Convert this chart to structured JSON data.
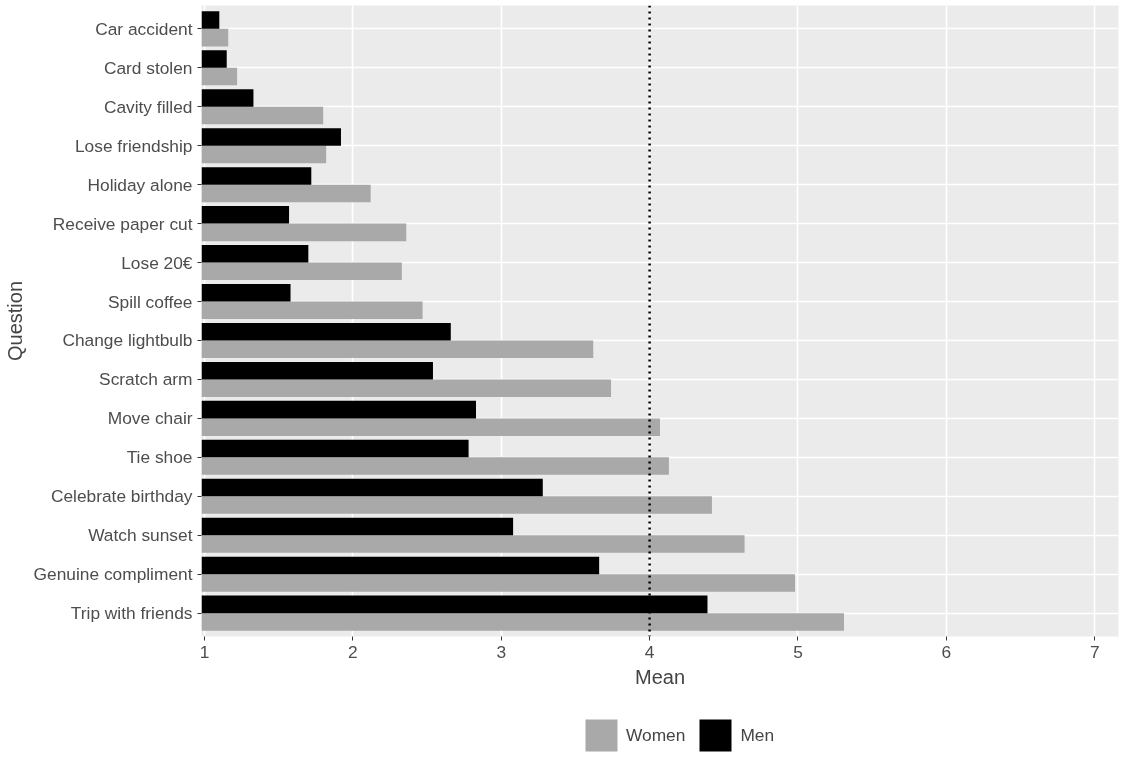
{
  "chart_data": {
    "type": "bar",
    "orientation": "horizontal",
    "xlabel": "Mean",
    "ylabel": "Question",
    "categories": [
      "Car accident",
      "Card stolen",
      "Cavity filled",
      "Lose friendship",
      "Holiday alone",
      "Receive paper cut",
      "Lose 20€",
      "Spill coffee",
      "Change lightbulb",
      "Scratch arm",
      "Move chair",
      "Tie shoe",
      "Celebrate birthday",
      "Watch sunset",
      "Genuine compliment",
      "Trip with friends"
    ],
    "series": [
      {
        "name": "Women",
        "color": "#a9a9a9",
        "values": [
          1.16,
          1.22,
          1.8,
          1.82,
          2.12,
          2.36,
          2.33,
          2.47,
          3.62,
          3.74,
          4.07,
          4.13,
          4.42,
          4.64,
          4.98,
          5.31
        ]
      },
      {
        "name": "Men",
        "color": "#000000",
        "values": [
          1.1,
          1.15,
          1.33,
          1.92,
          1.72,
          1.57,
          1.7,
          1.58,
          2.66,
          2.54,
          2.83,
          2.78,
          3.28,
          3.08,
          3.66,
          4.39
        ]
      }
    ],
    "xlim": [
      0.98,
      7.16
    ],
    "xticks": [
      1,
      2,
      3,
      4,
      5,
      6,
      7
    ],
    "ref_lines": [
      {
        "axis": "x",
        "value": 4,
        "color": "#000000",
        "line_style": "dotted"
      }
    ],
    "grid": true,
    "legend": "bottom"
  }
}
